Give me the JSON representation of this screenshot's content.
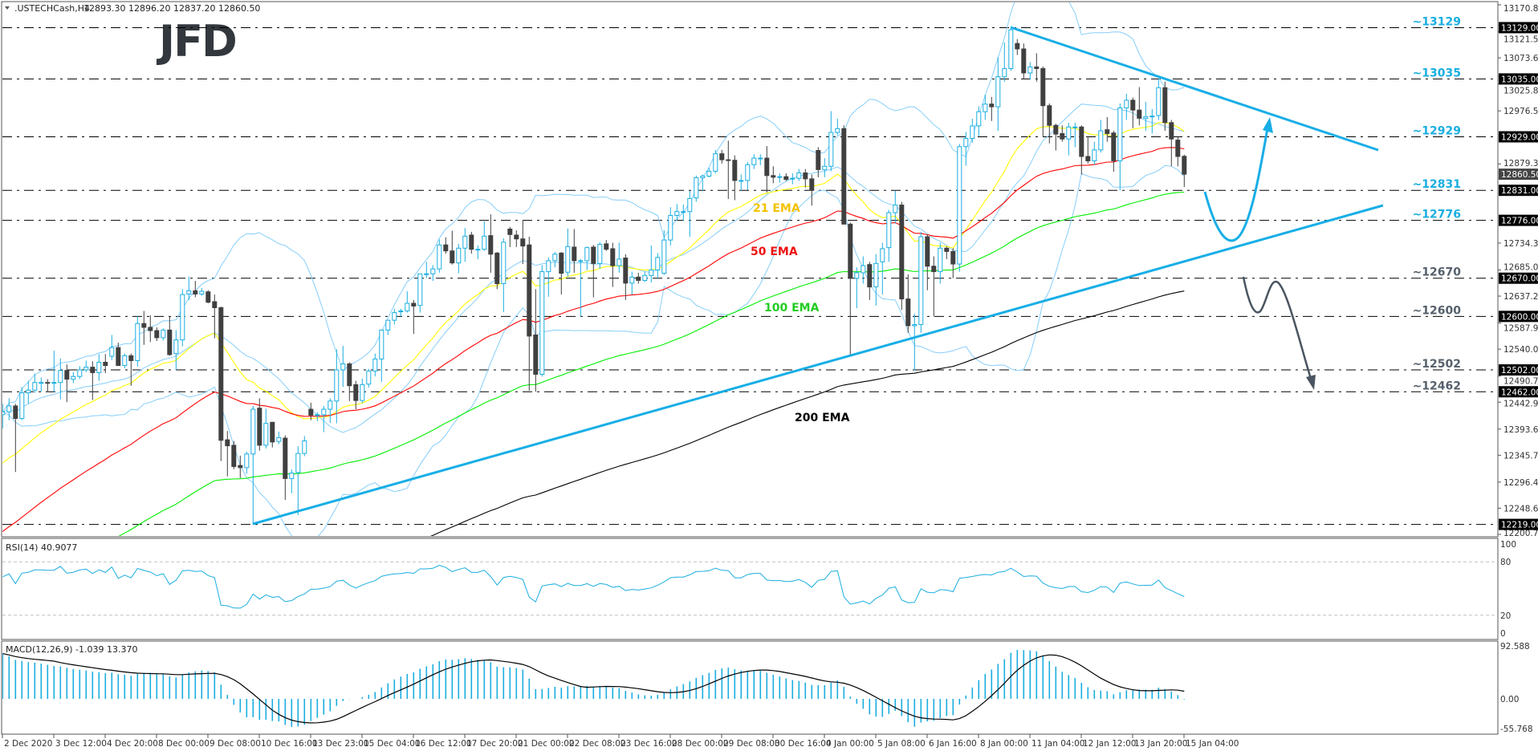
{
  "header": {
    "symbol": ".USTECHCash,H4",
    "ohlc": "12893.30 12896.20 12837.20 12860.50",
    "dropdown_icon": "triangle-down-icon"
  },
  "logo_text": "JFD",
  "colors": {
    "bull_candle": "#1aaee0",
    "bear_candle": "#404040",
    "ema21": "#ffff00",
    "ema50": "#ff0000",
    "ema100": "#00ee00",
    "ema200": "#000000",
    "bollinger": "#87cefa",
    "trendline": "#18aee6",
    "level_upper_label": "#1aaee0",
    "level_lower_label": "#55606b",
    "rsi": "#1aaee0",
    "macd_hist": "#1aaee0",
    "macd_signal": "#000000"
  },
  "ema_labels": {
    "ema21": "21 EMA",
    "ema50": "50 EMA",
    "ema100": "100 EMA",
    "ema200": "200 EMA"
  },
  "levels": [
    {
      "value": 13129,
      "label": "~13129",
      "box": "13129.00",
      "style": "upper"
    },
    {
      "value": 13035,
      "label": "~13035",
      "box": "13035.00",
      "style": "upper"
    },
    {
      "value": 12929,
      "label": "~12929",
      "box": "12929.00",
      "style": "upper"
    },
    {
      "value": 12831,
      "label": "~12831",
      "box": "12831.00",
      "style": "upper"
    },
    {
      "value": 12776,
      "label": "~12776",
      "box": "12776.00",
      "style": "upper"
    },
    {
      "value": 12670,
      "label": "~12670",
      "box": "12670.00",
      "style": "lower"
    },
    {
      "value": 12600,
      "label": "~12600",
      "box": "12600.00",
      "style": "lower"
    },
    {
      "value": 12502,
      "label": "~12502",
      "box": "12502.00",
      "style": "lower"
    },
    {
      "value": 12462,
      "label": "~12462",
      "box": "12462.00",
      "style": "lower"
    },
    {
      "value": 12219,
      "label": "",
      "box": "12219.00",
      "style": "none"
    }
  ],
  "current_price": {
    "value": 12860.5,
    "box": "12860.50"
  },
  "price_axis_ticks": [
    "13170.80",
    "13121.50",
    "13073.65",
    "13025.80",
    "12976.50",
    "12879.35",
    "12734.35",
    "12685.05",
    "12637.20",
    "12587.90",
    "12540.05",
    "12490.75",
    "12442.90",
    "12393.60",
    "12345.75",
    "12296.45",
    "12248.60",
    "12200.75"
  ],
  "time_axis_labels": [
    "2 Dec 2020",
    "3 Dec 12:00",
    "4 Dec 20:00",
    "8 Dec 00:00",
    "9 Dec 08:00",
    "10 Dec 16:00",
    "13 Dec 23:00",
    "15 Dec 04:00",
    "16 Dec 12:00",
    "17 Dec 20:00",
    "21 Dec 00:00",
    "22 Dec 08:00",
    "23 Dec 16:00",
    "28 Dec 00:00",
    "29 Dec 08:00",
    "30 Dec 16:00",
    "4 Jan 00:00",
    "5 Jan 08:00",
    "6 Jan 16:00",
    "8 Jan 00:00",
    "11 Jan 04:00",
    "12 Jan 12:00",
    "13 Jan 20:00",
    "15 Jan 04:00"
  ],
  "rsi": {
    "label": "RSI(14) 40.9077",
    "axis": [
      "100",
      "80",
      "20",
      "0"
    ],
    "levels": [
      80,
      20
    ],
    "range": [
      0,
      100
    ]
  },
  "macd": {
    "label": "MACD(12,26,9) -1.039 13.370",
    "axis": [
      "92.588",
      "0.00",
      "-55.768"
    ],
    "range": [
      -55.768,
      92.588
    ]
  },
  "chart_data": {
    "type": "candlestick",
    "timeframe": "H4",
    "ylim": [
      12200.75,
      13170.8
    ],
    "grid": false,
    "indicators": [
      "EMA 21",
      "EMA 50",
      "EMA 100",
      "EMA 200",
      "Bollinger Bands",
      "RSI(14)",
      "MACD(12,26,9)"
    ],
    "candles_ohlc": [
      [
        12420,
        12440,
        12395,
        12425
      ],
      [
        12425,
        12450,
        12410,
        12436
      ],
      [
        12436,
        12440,
        12315,
        12413
      ],
      [
        12413,
        12470,
        12410,
        12460
      ],
      [
        12460,
        12482,
        12440,
        12465
      ],
      [
        12465,
        12495,
        12460,
        12479
      ],
      [
        12479,
        12488,
        12462,
        12479
      ],
      [
        12479,
        12485,
        12462,
        12478
      ],
      [
        12478,
        12537,
        12462,
        12479
      ],
      [
        12479,
        12523,
        12448,
        12501
      ],
      [
        12501,
        12512,
        12443,
        12485
      ],
      [
        12485,
        12498,
        12478,
        12490
      ],
      [
        12490,
        12509,
        12485,
        12502
      ],
      [
        12502,
        12519,
        12498,
        12507
      ],
      [
        12507,
        12518,
        12447,
        12497
      ],
      [
        12497,
        12531,
        12482,
        12516
      ],
      [
        12516,
        12531,
        12496,
        12510
      ],
      [
        12527,
        12566,
        12520,
        12543
      ],
      [
        12543,
        12552,
        12510,
        12510
      ],
      [
        12510,
        12532,
        12505,
        12528
      ],
      [
        12528,
        12532,
        12473,
        12519
      ],
      [
        12519,
        12600,
        12508,
        12587
      ],
      [
        12587,
        12610,
        12548,
        12580
      ],
      [
        12580,
        12602,
        12553,
        12574
      ],
      [
        12574,
        12580,
        12555,
        12561
      ],
      [
        12561,
        12578,
        12556,
        12575
      ],
      [
        12575,
        12600,
        12528,
        12530
      ],
      [
        12532,
        12575,
        12502,
        12557
      ],
      [
        12557,
        12650,
        12545,
        12640
      ],
      [
        12641,
        12673,
        12630,
        12647
      ],
      [
        12647,
        12665,
        12635,
        12641
      ],
      [
        12641,
        12652,
        12638,
        12646
      ],
      [
        12645,
        12648,
        12624,
        12626
      ],
      [
        12627,
        12640,
        12560,
        12616
      ],
      [
        12616,
        12618,
        12335,
        12373
      ],
      [
        12374,
        12390,
        12307,
        12363
      ],
      [
        12364,
        12372,
        12320,
        12325
      ],
      [
        12327,
        12345,
        12304,
        12323
      ],
      [
        12323,
        12352,
        12312,
        12348
      ],
      [
        12348,
        12436,
        12219,
        12430
      ],
      [
        12432,
        12450,
        12354,
        12364
      ],
      [
        12364,
        12431,
        12358,
        12404
      ],
      [
        12406,
        12407,
        12360,
        12370
      ],
      [
        12371,
        12389,
        12366,
        12378
      ],
      [
        12377,
        12382,
        12264,
        12303
      ],
      [
        12303,
        12320,
        12276,
        12313
      ],
      [
        12314,
        12362,
        12236,
        12349
      ],
      [
        12349,
        12381,
        12344,
        12372
      ],
      [
        12430,
        12442,
        12410,
        12419
      ],
      [
        12420,
        12425,
        12408,
        12420
      ],
      [
        12420,
        12436,
        12388,
        12430
      ],
      [
        12430,
        12450,
        12405,
        12445
      ],
      [
        12445,
        12540,
        12404,
        12502
      ],
      [
        12502,
        12546,
        12471,
        12513
      ],
      [
        12513,
        12516,
        12445,
        12473
      ],
      [
        12475,
        12482,
        12430,
        12446
      ],
      [
        12446,
        12486,
        12441,
        12475
      ],
      [
        12476,
        12504,
        12470,
        12500
      ],
      [
        12500,
        12532,
        12490,
        12522
      ],
      [
        12522,
        12576,
        12480,
        12575
      ],
      [
        12575,
        12593,
        12566,
        12593
      ],
      [
        12593,
        12614,
        12585,
        12607
      ],
      [
        12609,
        12614,
        12600,
        12610
      ],
      [
        12610,
        12646,
        12607,
        12624
      ],
      [
        12624,
        12630,
        12568,
        12619
      ],
      [
        12620,
        12678,
        12607,
        12678
      ],
      [
        12678,
        12700,
        12670,
        12678
      ],
      [
        12678,
        12694,
        12665,
        12687
      ],
      [
        12687,
        12741,
        12680,
        12731
      ],
      [
        12731,
        12745,
        12715,
        12720
      ],
      [
        12720,
        12757,
        12695,
        12698
      ],
      [
        12698,
        12733,
        12679,
        12725
      ],
      [
        12725,
        12762,
        12700,
        12747
      ],
      [
        12749,
        12755,
        12715,
        12723
      ],
      [
        12723,
        12730,
        12705,
        12723
      ],
      [
        12723,
        12774,
        12720,
        12747
      ],
      [
        12748,
        12787,
        12680,
        12714
      ],
      [
        12716,
        12718,
        12650,
        12660
      ],
      [
        12660,
        12743,
        12608,
        12736
      ],
      [
        12760,
        12764,
        12727,
        12750
      ],
      [
        12749,
        12758,
        12727,
        12742
      ],
      [
        12742,
        12776,
        12696,
        12729
      ],
      [
        12731,
        12746,
        12464,
        12564
      ],
      [
        12566,
        12650,
        12462,
        12494
      ],
      [
        12494,
        12694,
        12490,
        12682
      ],
      [
        12682,
        12708,
        12636,
        12702
      ],
      [
        12702,
        12718,
        12690,
        12714
      ],
      [
        12716,
        12718,
        12640,
        12679
      ],
      [
        12681,
        12761,
        12673,
        12728
      ],
      [
        12727,
        12760,
        12680,
        12702
      ],
      [
        12702,
        12705,
        12600,
        12702
      ],
      [
        12702,
        12728,
        12685,
        12726
      ],
      [
        12727,
        12731,
        12635,
        12697
      ],
      [
        12697,
        12736,
        12687,
        12732
      ],
      [
        12733,
        12740,
        12720,
        12723
      ],
      [
        12724,
        12735,
        12654,
        12693
      ],
      [
        12693,
        12735,
        12680,
        12705
      ],
      [
        12707,
        12714,
        12630,
        12661
      ],
      [
        12661,
        12682,
        12640,
        12672
      ],
      [
        12672,
        12680,
        12660,
        12666
      ],
      [
        12666,
        12682,
        12663,
        12675
      ],
      [
        12675,
        12730,
        12662,
        12685
      ],
      [
        12685,
        12716,
        12670,
        12708
      ],
      [
        12679,
        12758,
        12676,
        12740
      ],
      [
        12740,
        12800,
        12730,
        12785
      ],
      [
        12785,
        12806,
        12776,
        12792
      ],
      [
        12792,
        12805,
        12775,
        12792
      ],
      [
        12792,
        12830,
        12746,
        12816
      ],
      [
        12817,
        12858,
        12810,
        12854
      ],
      [
        12854,
        12860,
        12830,
        12857
      ],
      [
        12857,
        12872,
        12855,
        12866
      ],
      [
        12866,
        12905,
        12862,
        12898
      ],
      [
        12898,
        12905,
        12880,
        12887
      ],
      [
        12887,
        12922,
        12815,
        12886
      ],
      [
        12886,
        12895,
        12813,
        12849
      ],
      [
        12849,
        12860,
        12830,
        12849
      ],
      [
        12849,
        12883,
        12832,
        12878
      ],
      [
        12878,
        12897,
        12870,
        12890
      ],
      [
        12890,
        12897,
        12877,
        12890
      ],
      [
        12890,
        12912,
        12827,
        12858
      ],
      [
        12858,
        12875,
        12844,
        12855
      ],
      [
        12855,
        12862,
        12845,
        12856
      ],
      [
        12856,
        12862,
        12848,
        12851
      ],
      [
        12852,
        12862,
        12842,
        12853
      ],
      [
        12853,
        12870,
        12848,
        12863
      ],
      [
        12863,
        12870,
        12836,
        12852
      ],
      [
        12852,
        12860,
        12803,
        12831
      ],
      [
        12904,
        12910,
        12855,
        12869
      ],
      [
        12869,
        12890,
        12855,
        12875
      ],
      [
        12875,
        12976,
        12866,
        12937
      ],
      [
        12937,
        12962,
        12932,
        12944
      ],
      [
        12944,
        12950,
        12769,
        12769
      ],
      [
        12769,
        12772,
        12528,
        12670
      ],
      [
        12670,
        12690,
        12615,
        12680
      ],
      [
        12680,
        12710,
        12660,
        12693
      ],
      [
        12695,
        12700,
        12630,
        12654
      ],
      [
        12654,
        12714,
        12620,
        12697
      ],
      [
        12700,
        12735,
        12640,
        12724
      ],
      [
        12726,
        12795,
        12700,
        12790
      ],
      [
        12790,
        12830,
        12770,
        12804
      ],
      [
        12804,
        12810,
        12612,
        12632
      ],
      [
        12632,
        12677,
        12570,
        12583
      ],
      [
        12583,
        12605,
        12501,
        12585
      ],
      [
        12585,
        12755,
        12570,
        12746
      ],
      [
        12746,
        12750,
        12648,
        12692
      ],
      [
        12692,
        12710,
        12600,
        12682
      ],
      [
        12682,
        12735,
        12660,
        12725
      ],
      [
        12725,
        12728,
        12705,
        12719
      ],
      [
        12719,
        12725,
        12670,
        12696
      ],
      [
        12696,
        12916,
        12682,
        12911
      ],
      [
        12911,
        12938,
        12876,
        12926
      ],
      [
        12926,
        12962,
        12918,
        12949
      ],
      [
        12949,
        12985,
        12930,
        12975
      ],
      [
        12975,
        13006,
        12960,
        12989
      ],
      [
        12989,
        13002,
        12958,
        12984
      ],
      [
        12984,
        13075,
        12940,
        13039
      ],
      [
        13039,
        13102,
        13030,
        13054
      ],
      [
        13054,
        13129,
        13050,
        13125
      ],
      [
        13100,
        13108,
        13079,
        13090
      ],
      [
        13090,
        13100,
        13034,
        13046
      ],
      [
        13046,
        13066,
        13034,
        13057
      ],
      [
        13057,
        13082,
        13030,
        13054
      ],
      [
        13054,
        13058,
        12930,
        12986
      ],
      [
        12986,
        12990,
        12917,
        12950
      ],
      [
        12950,
        12953,
        12904,
        12934
      ],
      [
        12935,
        12950,
        12920,
        12925
      ],
      [
        12925,
        12955,
        12895,
        12947
      ],
      [
        12947,
        12955,
        12910,
        12947
      ],
      [
        12947,
        12950,
        12860,
        12893
      ],
      [
        12893,
        12930,
        12880,
        12885
      ],
      [
        12885,
        12920,
        12878,
        12905
      ],
      [
        12905,
        12960,
        12900,
        12940
      ],
      [
        12942,
        12965,
        12920,
        12935
      ],
      [
        12936,
        12940,
        12865,
        12885
      ],
      [
        12885,
        12990,
        12831,
        12982
      ],
      [
        12982,
        13008,
        12960,
        12996
      ],
      [
        12996,
        13001,
        12945,
        12978
      ],
      [
        12978,
        13020,
        12950,
        12963
      ],
      [
        12963,
        12993,
        12940,
        12966
      ],
      [
        12967,
        12980,
        12935,
        12967
      ],
      [
        12968,
        13035,
        12960,
        13019
      ],
      [
        13019,
        13030,
        12940,
        12955
      ],
      [
        12955,
        12960,
        12875,
        12925
      ],
      [
        12923,
        12930,
        12875,
        12893
      ],
      [
        12893.3,
        12896.2,
        12837.2,
        12860.5
      ]
    ]
  }
}
